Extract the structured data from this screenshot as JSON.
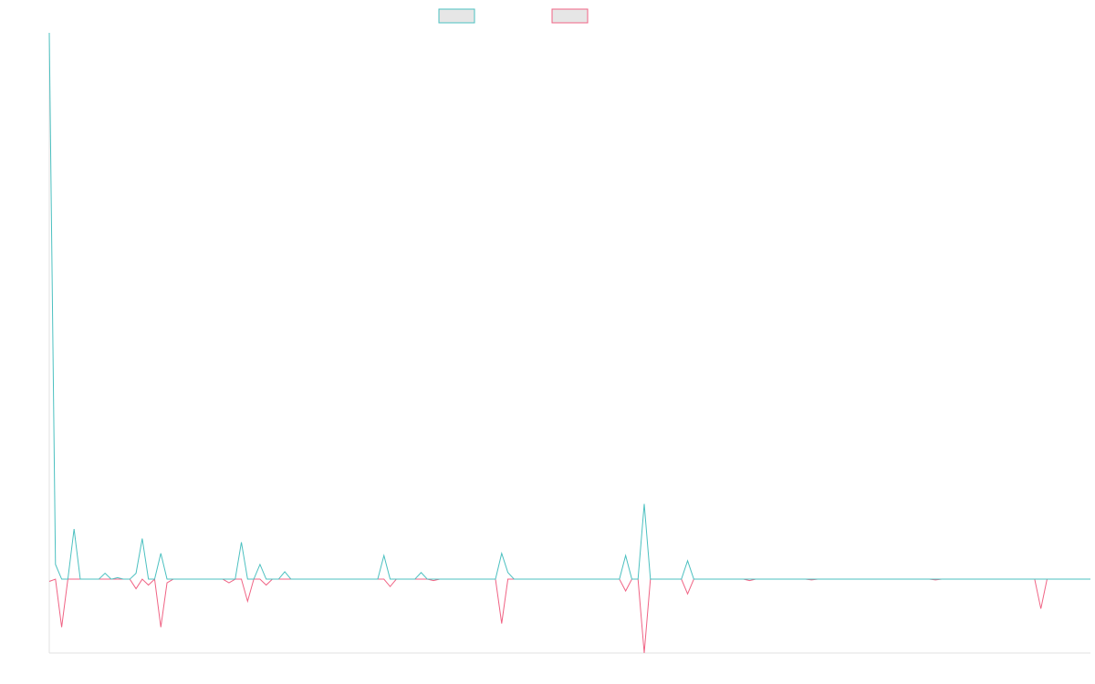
{
  "chart_data": {
    "type": "line",
    "title": "",
    "xlabel": "",
    "ylabel": "",
    "legend_position": "top-center",
    "grid": false,
    "ylim": [
      -100,
      740
    ],
    "xlim": [
      0,
      168
    ],
    "series": [
      {
        "color": "#4bc0c0",
        "fill": "#e6e6e6",
        "points": [
          [
            0,
            740
          ],
          [
            1,
            20
          ],
          [
            2,
            0
          ],
          [
            3,
            0
          ],
          [
            4,
            68
          ],
          [
            5,
            0
          ],
          [
            6,
            0
          ],
          [
            7,
            0
          ],
          [
            8,
            0
          ],
          [
            9,
            8
          ],
          [
            10,
            0
          ],
          [
            11,
            2
          ],
          [
            12,
            0
          ],
          [
            13,
            0
          ],
          [
            14,
            0
          ],
          [
            15,
            0
          ],
          [
            16,
            0
          ],
          [
            17,
            0
          ],
          [
            18,
            0
          ],
          [
            19,
            0
          ],
          [
            20,
            0
          ],
          [
            21,
            0
          ],
          [
            22,
            0
          ],
          [
            23,
            0
          ],
          [
            24,
            0
          ],
          [
            25,
            0
          ],
          [
            26,
            0
          ],
          [
            27,
            0
          ],
          [
            28,
            0
          ],
          [
            29,
            0
          ],
          [
            30,
            0
          ],
          [
            31,
            0
          ],
          [
            32,
            0
          ],
          [
            33,
            0
          ],
          [
            34,
            0
          ],
          [
            35,
            0
          ],
          [
            36,
            0
          ],
          [
            37,
            0
          ],
          [
            38,
            0
          ],
          [
            39,
            0
          ],
          [
            40,
            0
          ],
          [
            41,
            0
          ],
          [
            42,
            0
          ],
          [
            43,
            0
          ],
          [
            44,
            0
          ],
          [
            45,
            0
          ],
          [
            46,
            0
          ],
          [
            47,
            0
          ],
          [
            48,
            0
          ],
          [
            49,
            0
          ],
          [
            50,
            0
          ],
          [
            51,
            0
          ],
          [
            52,
            0
          ],
          [
            53,
            0
          ],
          [
            54,
            0
          ],
          [
            55,
            0
          ],
          [
            56,
            0
          ],
          [
            57,
            0
          ],
          [
            58,
            0
          ],
          [
            59,
            0
          ],
          [
            60,
            0
          ],
          [
            61,
            0
          ],
          [
            62,
            0
          ],
          [
            63,
            0
          ],
          [
            64,
            0
          ],
          [
            65,
            0
          ],
          [
            66,
            0
          ],
          [
            67,
            0
          ],
          [
            68,
            0
          ],
          [
            69,
            0
          ],
          [
            70,
            0
          ],
          [
            71,
            0
          ],
          [
            72,
            0
          ],
          [
            73,
            0
          ],
          [
            74,
            0
          ],
          [
            75,
            0
          ],
          [
            76,
            0
          ],
          [
            77,
            0
          ],
          [
            78,
            0
          ],
          [
            79,
            0
          ],
          [
            80,
            0
          ],
          [
            81,
            0
          ],
          [
            82,
            0
          ],
          [
            83,
            0
          ],
          [
            84,
            0
          ],
          [
            85,
            0
          ],
          [
            86,
            0
          ],
          [
            87,
            0
          ],
          [
            88,
            0
          ],
          [
            89,
            0
          ],
          [
            90,
            0
          ],
          [
            91,
            0
          ],
          [
            92,
            0
          ],
          [
            93,
            0
          ],
          [
            94,
            0
          ],
          [
            95,
            0
          ],
          [
            96,
            0
          ],
          [
            97,
            0
          ],
          [
            98,
            0
          ],
          [
            99,
            0
          ],
          [
            100,
            0
          ],
          [
            101,
            0
          ],
          [
            102,
            0
          ],
          [
            103,
            0
          ],
          [
            104,
            0
          ],
          [
            105,
            0
          ],
          [
            106,
            0
          ],
          [
            107,
            0
          ],
          [
            108,
            0
          ],
          [
            109,
            0
          ],
          [
            110,
            0
          ],
          [
            111,
            0
          ],
          [
            112,
            0
          ],
          [
            113,
            0
          ],
          [
            114,
            0
          ],
          [
            115,
            0
          ],
          [
            116,
            0
          ],
          [
            117,
            0
          ],
          [
            118,
            0
          ],
          [
            119,
            0
          ],
          [
            120,
            0
          ],
          [
            121,
            0
          ],
          [
            122,
            0
          ],
          [
            123,
            0
          ],
          [
            124,
            0
          ],
          [
            125,
            0
          ],
          [
            126,
            0
          ],
          [
            127,
            0
          ],
          [
            128,
            0
          ],
          [
            129,
            0
          ],
          [
            130,
            0
          ],
          [
            131,
            0
          ],
          [
            132,
            0
          ],
          [
            133,
            0
          ],
          [
            134,
            0
          ],
          [
            135,
            0
          ],
          [
            136,
            0
          ],
          [
            137,
            0
          ],
          [
            138,
            0
          ],
          [
            139,
            0
          ],
          [
            140,
            0
          ],
          [
            141,
            0
          ],
          [
            142,
            0
          ],
          [
            143,
            0
          ],
          [
            144,
            0
          ],
          [
            145,
            0
          ],
          [
            146,
            0
          ],
          [
            147,
            0
          ],
          [
            148,
            0
          ],
          [
            149,
            0
          ],
          [
            150,
            0
          ],
          [
            151,
            0
          ],
          [
            152,
            0
          ],
          [
            153,
            0
          ],
          [
            154,
            0
          ],
          [
            155,
            0
          ],
          [
            156,
            0
          ],
          [
            157,
            0
          ],
          [
            158,
            0
          ],
          [
            159,
            0
          ],
          [
            160,
            0
          ],
          [
            161,
            0
          ],
          [
            162,
            0
          ],
          [
            163,
            0
          ],
          [
            164,
            0
          ],
          [
            165,
            0
          ],
          [
            166,
            0
          ],
          [
            167,
            0
          ],
          [
            168,
            0
          ]
        ],
        "spikes": [
          [
            14,
            8
          ],
          [
            15,
            55
          ],
          [
            18,
            35
          ],
          [
            31,
            50
          ],
          [
            34,
            20
          ],
          [
            38,
            10
          ],
          [
            54,
            32
          ],
          [
            60,
            9
          ],
          [
            73,
            35
          ],
          [
            74,
            9
          ],
          [
            93,
            32
          ],
          [
            96,
            102
          ],
          [
            103,
            25
          ]
        ]
      },
      {
        "color": "#f06384",
        "fill": "#e6e6e6",
        "points": [],
        "spikes": [
          [
            0,
            -3
          ],
          [
            2,
            -65
          ],
          [
            14,
            -13
          ],
          [
            16,
            -8
          ],
          [
            18,
            -65
          ],
          [
            19,
            -5
          ],
          [
            29,
            -5
          ],
          [
            32,
            -30
          ],
          [
            35,
            -8
          ],
          [
            55,
            -10
          ],
          [
            62,
            -2
          ],
          [
            73,
            -60
          ],
          [
            93,
            -16
          ],
          [
            96,
            -100
          ],
          [
            103,
            -20
          ],
          [
            113,
            -2
          ],
          [
            123,
            -1
          ],
          [
            143,
            -1
          ],
          [
            160,
            -40
          ]
        ]
      }
    ]
  }
}
